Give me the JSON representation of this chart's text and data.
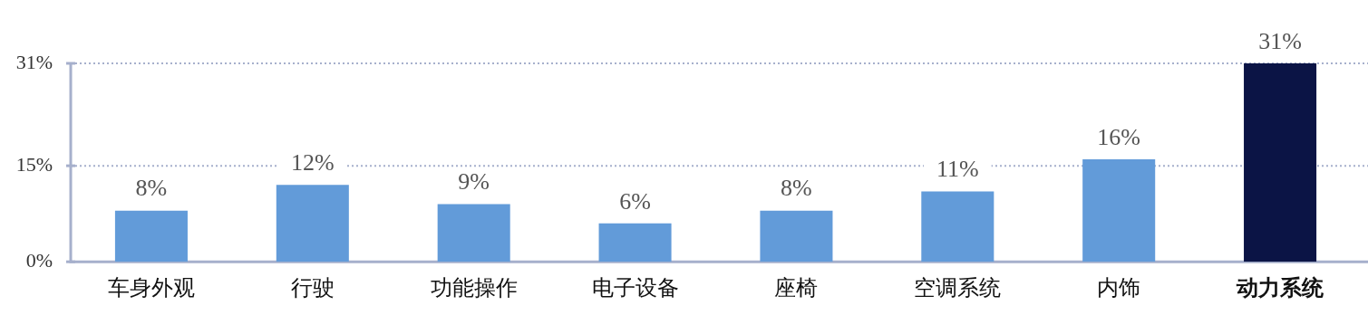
{
  "chart_data": {
    "type": "bar",
    "categories": [
      "车身外观",
      "行驶",
      "功能操作",
      "电子设备",
      "座椅",
      "空调系统",
      "内饰",
      "动力系统"
    ],
    "values": [
      8,
      12,
      9,
      6,
      8,
      11,
      16,
      31
    ],
    "colors": [
      "#629bd9",
      "#629bd9",
      "#629bd9",
      "#629bd9",
      "#629bd9",
      "#629bd9",
      "#629bd9",
      "#0b1445"
    ],
    "value_labels": [
      "8%",
      "12%",
      "9%",
      "6%",
      "8%",
      "11%",
      "16%",
      "31%"
    ],
    "ylim": [
      0,
      31
    ],
    "yticks": [
      {
        "value": 0,
        "label": "0%"
      },
      {
        "value": 15,
        "label": "15%"
      },
      {
        "value": 31,
        "label": "31%"
      }
    ],
    "grid": "y",
    "legend": false
  }
}
